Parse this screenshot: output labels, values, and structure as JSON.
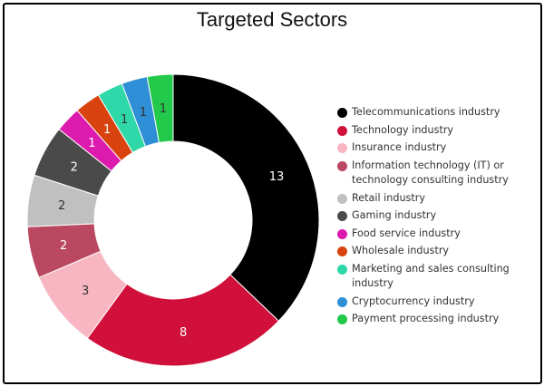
{
  "chart_data": {
    "type": "pie",
    "title": "Targeted Sectors",
    "donut": true,
    "legend": "right",
    "slices": [
      {
        "label": "Telecommunications industry",
        "value": 13,
        "color": "#000000"
      },
      {
        "label": "Technology industry",
        "value": 8,
        "color": "#D0103A"
      },
      {
        "label": "Insurance industry",
        "value": 3,
        "color": "#F7B6C2"
      },
      {
        "label": "Information technology (IT) or technology consulting industry",
        "value": 2,
        "color": "#B94860"
      },
      {
        "label": "Retail industry",
        "value": 2,
        "color": "#C0C0C0"
      },
      {
        "label": "Gaming industry",
        "value": 2,
        "color": "#4A4A4A"
      },
      {
        "label": "Food service industry",
        "value": 1,
        "color": "#DD1AAE"
      },
      {
        "label": "Wholesale industry",
        "value": 1,
        "color": "#D9430F"
      },
      {
        "label": "Marketing and sales consulting industry",
        "value": 1,
        "color": "#2FD8A8"
      },
      {
        "label": "Cryptocurrency industry",
        "value": 1,
        "color": "#2E8FD6"
      },
      {
        "label": "Payment processing industry",
        "value": 1,
        "color": "#22C94A"
      }
    ]
  }
}
